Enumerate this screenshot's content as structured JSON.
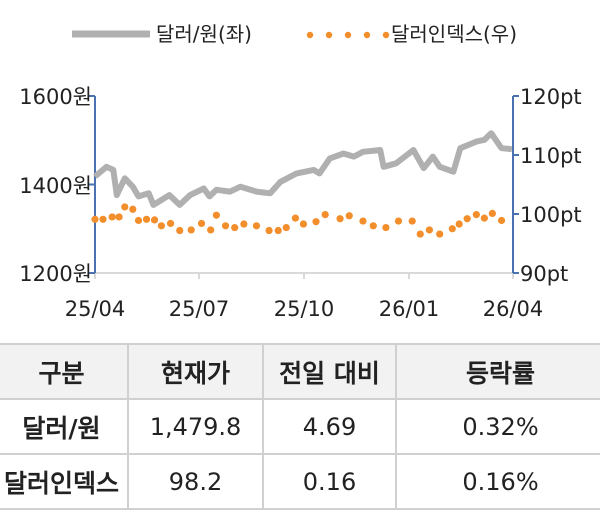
{
  "chart_data": {
    "type": "line",
    "legend": {
      "position": "top",
      "items": [
        "달러/원(좌)",
        "달러인덱스(우)"
      ]
    },
    "x_ticks": [
      "25/04",
      "25/07",
      "25/10",
      "26/01",
      "26/04"
    ],
    "y_left": {
      "ticks": [
        "1600원",
        "1400원",
        "1200원"
      ],
      "range": [
        1200,
        1600
      ]
    },
    "y_right": {
      "ticks": [
        "120pt",
        "110pt",
        "100pt",
        "90pt"
      ],
      "range": [
        90,
        120
      ]
    },
    "grid": false,
    "colors": {
      "krw": "#b0b0b0",
      "dxy": "#f28e2b",
      "axis": "#4a72b0"
    },
    "series": [
      {
        "name": "달러/원(좌)",
        "axis": "left",
        "style": "line",
        "points": [
          [
            "2025-04-01",
            1418
          ],
          [
            "2025-04-11",
            1440
          ],
          [
            "2025-04-17",
            1433
          ],
          [
            "2025-04-20",
            1376
          ],
          [
            "2025-04-27",
            1414
          ],
          [
            "2025-05-04",
            1395
          ],
          [
            "2025-05-09",
            1373
          ],
          [
            "2025-05-18",
            1380
          ],
          [
            "2025-05-22",
            1354
          ],
          [
            "2025-06-05",
            1376
          ],
          [
            "2025-06-14",
            1354
          ],
          [
            "2025-06-23",
            1376
          ],
          [
            "2025-07-05",
            1391
          ],
          [
            "2025-07-10",
            1373
          ],
          [
            "2025-07-16",
            1388
          ],
          [
            "2025-07-28",
            1384
          ],
          [
            "2025-08-06",
            1395
          ],
          [
            "2025-08-20",
            1384
          ],
          [
            "2025-09-01",
            1380
          ],
          [
            "2025-09-10",
            1406
          ],
          [
            "2025-09-24",
            1425
          ],
          [
            "2025-10-09",
            1433
          ],
          [
            "2025-10-14",
            1425
          ],
          [
            "2025-10-23",
            1459
          ],
          [
            "2025-11-04",
            1470
          ],
          [
            "2025-11-13",
            1463
          ],
          [
            "2025-11-21",
            1474
          ],
          [
            "2025-12-06",
            1478
          ],
          [
            "2025-12-09",
            1440
          ],
          [
            "2025-12-20",
            1448
          ],
          [
            "2026-01-04",
            1478
          ],
          [
            "2026-01-13",
            1437
          ],
          [
            "2026-01-21",
            1463
          ],
          [
            "2026-01-27",
            1440
          ],
          [
            "2026-02-08",
            1429
          ],
          [
            "2026-02-14",
            1482
          ],
          [
            "2026-02-28",
            1497
          ],
          [
            "2026-03-07",
            1501
          ],
          [
            "2026-03-13",
            1516
          ],
          [
            "2026-03-22",
            1482
          ],
          [
            "2026-03-31",
            1479.8
          ]
        ]
      },
      {
        "name": "달러인덱스(우)",
        "axis": "right",
        "style": "dots",
        "points": [
          [
            "2025-04-01",
            99.1
          ],
          [
            "2025-04-08",
            99.1
          ],
          [
            "2025-04-16",
            99.5
          ],
          [
            "2025-04-22",
            99.5
          ],
          [
            "2025-04-27",
            101.2
          ],
          [
            "2025-05-04",
            100.8
          ],
          [
            "2025-05-09",
            98.9
          ],
          [
            "2025-05-16",
            99.1
          ],
          [
            "2025-05-23",
            99.0
          ],
          [
            "2025-05-29",
            98.0
          ],
          [
            "2025-06-06",
            98.4
          ],
          [
            "2025-06-14",
            97.2
          ],
          [
            "2025-06-24",
            97.3
          ],
          [
            "2025-07-03",
            98.4
          ],
          [
            "2025-07-11",
            97.3
          ],
          [
            "2025-07-16",
            99.8
          ],
          [
            "2025-07-24",
            98.0
          ],
          [
            "2025-08-01",
            97.7
          ],
          [
            "2025-08-09",
            98.3
          ],
          [
            "2025-08-20",
            98.0
          ],
          [
            "2025-08-31",
            97.2
          ],
          [
            "2025-09-08",
            97.2
          ],
          [
            "2025-09-15",
            97.7
          ],
          [
            "2025-09-23",
            99.3
          ],
          [
            "2025-09-30",
            98.3
          ],
          [
            "2025-10-11",
            98.7
          ],
          [
            "2025-10-19",
            99.9
          ],
          [
            "2025-11-01",
            99.2
          ],
          [
            "2025-11-09",
            99.7
          ],
          [
            "2025-11-21",
            98.8
          ],
          [
            "2025-11-30",
            98.0
          ],
          [
            "2025-12-11",
            97.7
          ],
          [
            "2025-12-22",
            98.8
          ],
          [
            "2026-01-03",
            98.8
          ],
          [
            "2026-01-10",
            96.6
          ],
          [
            "2026-01-18",
            97.3
          ],
          [
            "2026-01-27",
            96.6
          ],
          [
            "2026-02-07",
            97.5
          ],
          [
            "2026-02-13",
            98.3
          ],
          [
            "2026-02-20",
            99.2
          ],
          [
            "2026-02-28",
            99.9
          ],
          [
            "2026-03-07",
            99.3
          ],
          [
            "2026-03-14",
            100.1
          ],
          [
            "2026-03-22",
            98.9
          ]
        ]
      }
    ]
  },
  "table": {
    "headers": [
      "구분",
      "현재가",
      "전일 대비",
      "등락률"
    ],
    "rows": [
      [
        "달러/원",
        "1,479.8",
        "4.69",
        "0.32%"
      ],
      [
        "달러인덱스",
        "98.2",
        "0.16",
        "0.16%"
      ]
    ]
  }
}
